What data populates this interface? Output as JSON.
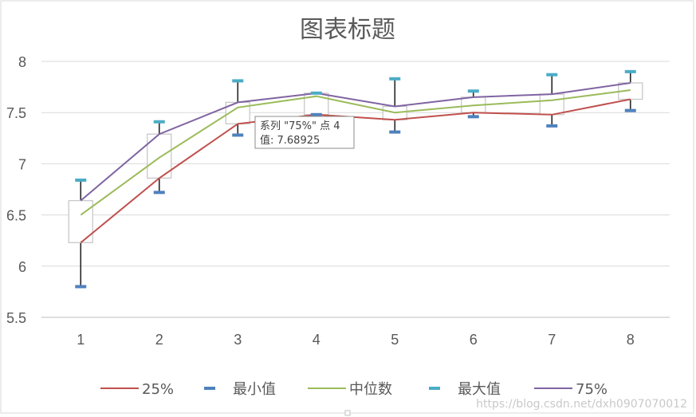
{
  "chart_data": {
    "type": "line",
    "subtype": "stock-box",
    "title": "图表标题",
    "xlabel": "",
    "ylabel": "",
    "categories": [
      "1",
      "2",
      "3",
      "4",
      "5",
      "6",
      "7",
      "8"
    ],
    "ylim": [
      5.5,
      8
    ],
    "yticks": [
      "5.5",
      "6",
      "6.5",
      "7",
      "7.5",
      "8"
    ],
    "grid": true,
    "legend_position": "bottom",
    "series": [
      {
        "name": "25%",
        "color": "#c0504d",
        "mark": "line",
        "values": [
          6.23,
          6.86,
          7.39,
          7.48,
          7.43,
          7.5,
          7.48,
          7.63
        ]
      },
      {
        "name": "最小值",
        "color": "#4f81bd",
        "mark": "dash",
        "values": [
          5.8,
          6.72,
          7.28,
          7.48,
          7.31,
          7.46,
          7.37,
          7.52
        ]
      },
      {
        "name": "中位数",
        "color": "#9bbb59",
        "mark": "line",
        "values": [
          6.5,
          7.06,
          7.55,
          7.66,
          7.5,
          7.57,
          7.62,
          7.72
        ]
      },
      {
        "name": "最大值",
        "color": "#4bacc6",
        "mark": "dash",
        "values": [
          6.84,
          7.41,
          7.81,
          7.69,
          7.83,
          7.71,
          7.87,
          7.9
        ]
      },
      {
        "name": "75%",
        "color": "#8064a2",
        "mark": "line",
        "values": [
          6.64,
          7.29,
          7.6,
          7.68925,
          7.56,
          7.65,
          7.68,
          7.79
        ]
      }
    ],
    "tooltip": {
      "line1": "系列 \"75%\" 点 4",
      "line2": "值: 7.68925"
    }
  },
  "watermark": "https://blog.csdn.net/dxh0907070012"
}
